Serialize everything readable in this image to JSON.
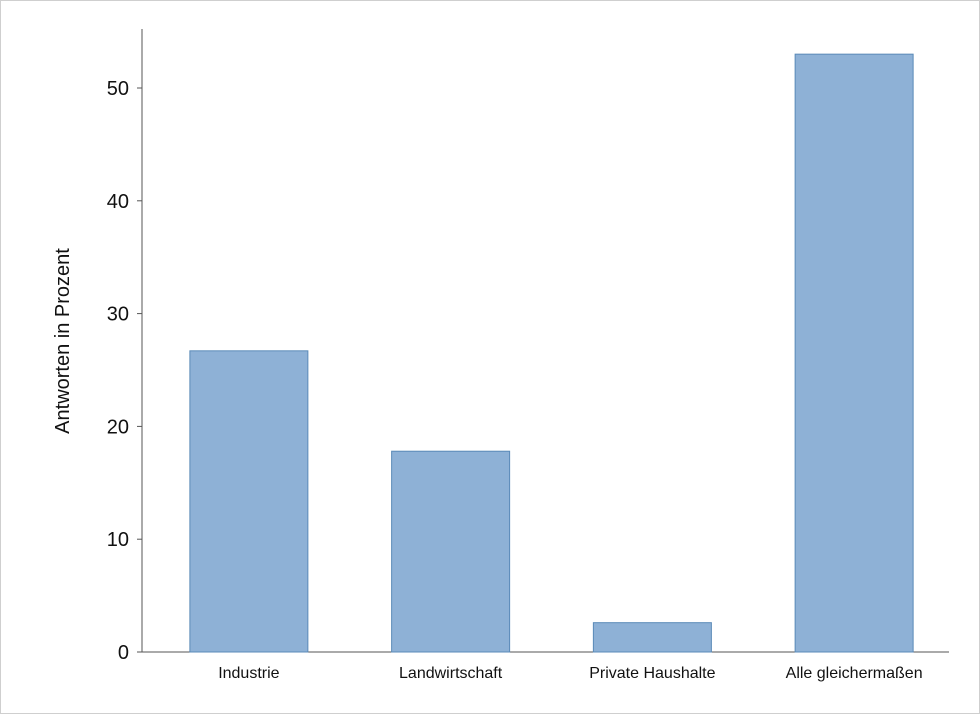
{
  "chart_data": {
    "type": "bar",
    "title": "",
    "xlabel": "",
    "ylabel": "Antworten in Prozent",
    "categories": [
      "Industrie",
      "Landwirtschaft",
      "Private Haushalte",
      "Alle gleichermaßen"
    ],
    "values": [
      26.7,
      17.8,
      2.6,
      53.0
    ],
    "ylim": [
      0,
      55
    ],
    "yticks": [
      0,
      10,
      20,
      30,
      40,
      50
    ],
    "ytick_labels": [
      "0",
      "10",
      "20",
      "30",
      "40",
      "50"
    ],
    "grid": false,
    "legend": "none",
    "bar_color": "#8EB1D6",
    "bar_edge_color": "#5A8AB8"
  }
}
